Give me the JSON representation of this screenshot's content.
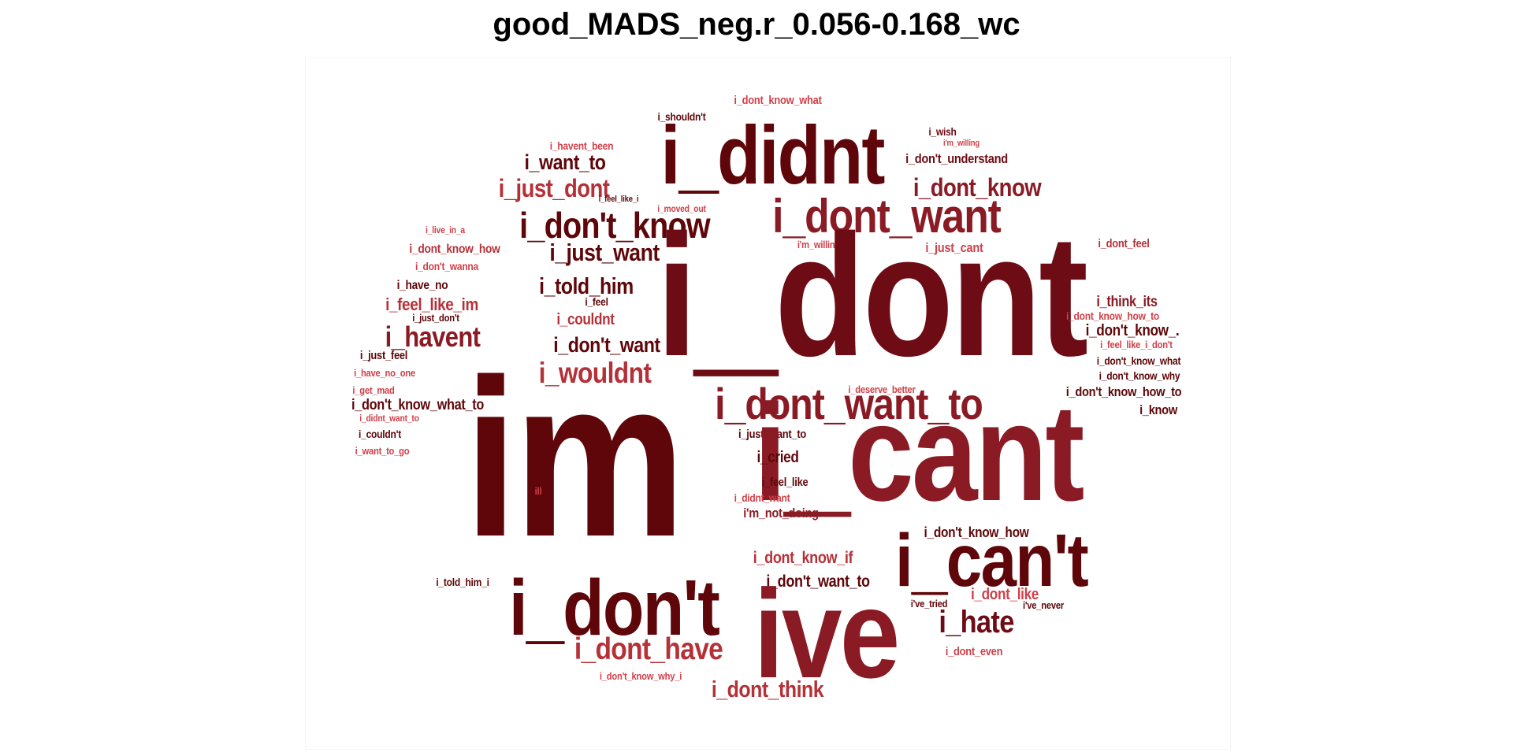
{
  "title": "good_MADS_neg.r_0.056-0.168_wc",
  "colors": {
    "darkest": "#5e0609",
    "dark": "#6e0c15",
    "mid": "#8a1b25",
    "light": "#b53138",
    "lightest": "#d0414a"
  },
  "words": [
    {
      "text": "i_dont_know_what",
      "color": "lightest"
    },
    {
      "text": "i_shouldn't",
      "color": "darkest"
    },
    {
      "text": "i_wish",
      "color": "dark"
    },
    {
      "text": "i'm_willing",
      "color": "lightest"
    },
    {
      "text": "i_havent_been",
      "color": "lightest"
    },
    {
      "text": "i_didnt",
      "color": "darkest"
    },
    {
      "text": "i_don't_understand",
      "color": "dark"
    },
    {
      "text": "i_want_to",
      "color": "darkest"
    },
    {
      "text": "i_just_dont",
      "color": "light"
    },
    {
      "text": "i_dont_know",
      "color": "mid"
    },
    {
      "text": "i_feel_like_i",
      "color": "darkest"
    },
    {
      "text": "i_moved_out",
      "color": "lightest"
    },
    {
      "text": "i_dont_want",
      "color": "mid"
    },
    {
      "text": "i_don't_know",
      "color": "darkest"
    },
    {
      "text": "i_live_in_a",
      "color": "lightest"
    },
    {
      "text": "i_dont_know_how",
      "color": "light"
    },
    {
      "text": "i_just_want",
      "color": "darkest"
    },
    {
      "text": "i'm_willing_to",
      "color": "lightest"
    },
    {
      "text": "i_just_cant",
      "color": "lightest"
    },
    {
      "text": "i_dont_feel",
      "color": "light"
    },
    {
      "text": "i_don't_wanna",
      "color": "lightest"
    },
    {
      "text": "i_dont",
      "color": "dark"
    },
    {
      "text": "i_have_no",
      "color": "darkest"
    },
    {
      "text": "i_told_him",
      "color": "darkest"
    },
    {
      "text": "i_feel_like_im",
      "color": "light"
    },
    {
      "text": "i_feel",
      "color": "darkest"
    },
    {
      "text": "i_think_its",
      "color": "mid"
    },
    {
      "text": "i_dont_know_how_to",
      "color": "lightest"
    },
    {
      "text": "i_just_don't",
      "color": "darkest"
    },
    {
      "text": "i_couldnt",
      "color": "light"
    },
    {
      "text": "i_havent",
      "color": "mid"
    },
    {
      "text": "i_don't_know_.",
      "color": "darkest"
    },
    {
      "text": "i_feel_like_i_don't",
      "color": "lightest"
    },
    {
      "text": "i_don't_want",
      "color": "darkest"
    },
    {
      "text": "i_just_feel",
      "color": "darkest"
    },
    {
      "text": "i_don't_know_what",
      "color": "darkest"
    },
    {
      "text": "i_have_no_one",
      "color": "lightest"
    },
    {
      "text": "i_wouldnt",
      "color": "light"
    },
    {
      "text": "i_don't_know_why",
      "color": "darkest"
    },
    {
      "text": "i_get_mad",
      "color": "lightest"
    },
    {
      "text": "i_deserve_better",
      "color": "lightest"
    },
    {
      "text": "i_don't_know_how_to",
      "color": "darkest"
    },
    {
      "text": "i_dont_want_to",
      "color": "mid"
    },
    {
      "text": "i_don't_know_what_to",
      "color": "darkest"
    },
    {
      "text": "i_didnt_want_to",
      "color": "lightest"
    },
    {
      "text": "i_know",
      "color": "darkest"
    },
    {
      "text": "im",
      "color": "darkest"
    },
    {
      "text": "i_couldn't",
      "color": "darkest"
    },
    {
      "text": "i_just_want_to",
      "color": "darkest"
    },
    {
      "text": "i_want_to_go",
      "color": "lightest"
    },
    {
      "text": "i_cant",
      "color": "mid"
    },
    {
      "text": "i_cried",
      "color": "darkest"
    },
    {
      "text": "i_feel_like",
      "color": "darkest"
    },
    {
      "text": "ill",
      "color": "lightest"
    },
    {
      "text": "i_didnt_want",
      "color": "lightest"
    },
    {
      "text": "i'm_not_doing",
      "color": "mid"
    },
    {
      "text": "i_don't_know_how",
      "color": "darkest"
    },
    {
      "text": "i_dont_know_if",
      "color": "light"
    },
    {
      "text": "i_can't",
      "color": "darkest"
    },
    {
      "text": "i_don't_want_to",
      "color": "darkest"
    },
    {
      "text": "i_told_him_i",
      "color": "darkest"
    },
    {
      "text": "i_dont_like",
      "color": "lightest"
    },
    {
      "text": "i_don't",
      "color": "darkest"
    },
    {
      "text": "ive",
      "color": "mid"
    },
    {
      "text": "i've_tried",
      "color": "darkest"
    },
    {
      "text": "i've_never",
      "color": "darkest"
    },
    {
      "text": "i_hate",
      "color": "dark"
    },
    {
      "text": "i_dont_have",
      "color": "light"
    },
    {
      "text": "i_dont_even",
      "color": "lightest"
    },
    {
      "text": "i_don't_know_why_i",
      "color": "lightest"
    },
    {
      "text": "i_dont_think",
      "color": "light"
    }
  ]
}
